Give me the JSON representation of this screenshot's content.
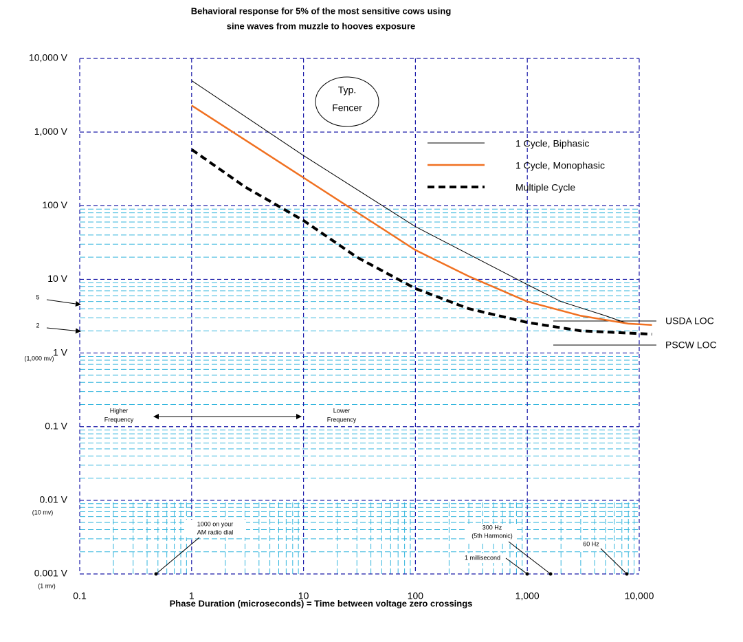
{
  "chart_data": {
    "type": "line",
    "title": [
      "Behavioral response for 5% of the most sensitive cows using",
      "sine waves from muzzle to hooves exposure"
    ],
    "x_label": "Phase Duration (microseconds) = Time between voltage zero crossings",
    "log_x": true,
    "log_y": true,
    "grid": true,
    "xlim": [
      0.1,
      10000
    ],
    "ylim": [
      0.001,
      10000
    ],
    "xticks": [
      0.1,
      1,
      10,
      100,
      {
        "value": 1000,
        "label": "1,000"
      },
      {
        "value": 10000,
        "label": "10,000"
      }
    ],
    "yticks": [
      {
        "value": 0.001,
        "label": "0.001 V"
      },
      {
        "value": 0.01,
        "label": "0.01 V"
      },
      {
        "value": 0.1,
        "label": "0.1 V"
      },
      {
        "value": 1,
        "label": "1 V"
      },
      {
        "value": 10,
        "label": "10 V"
      },
      {
        "value": 100,
        "label": "100 V"
      },
      {
        "value": 1000,
        "label": "1,000 V"
      },
      {
        "value": 10000,
        "label": "10,000 V"
      }
    ],
    "minor_grid_ylim": [
      0.001,
      100
    ],
    "minor_x_grid_ylim": [
      0.001,
      0.01
    ],
    "series": [
      {
        "name": "1 Cycle, Biphasic",
        "color": "#000000",
        "width": 1,
        "dashed": false,
        "x": [
          1,
          10,
          100,
          1000,
          2000,
          5000,
          8000
        ],
        "values": [
          5000,
          480,
          52,
          8.5,
          5,
          3.2,
          2.5
        ]
      },
      {
        "name": "1 Cycle, Monophasic",
        "color": "#f07020",
        "width": 2.5,
        "dashed": false,
        "x": [
          1,
          10,
          100,
          300,
          1000,
          3000,
          8000,
          13000
        ],
        "values": [
          2300,
          240,
          25,
          11,
          5,
          3.2,
          2.5,
          2.4
        ]
      },
      {
        "name": "Multiple Cycle",
        "color": "#000000",
        "width": 4,
        "dashed": true,
        "x": [
          1,
          3,
          10,
          30,
          100,
          300,
          1000,
          3000,
          13000
        ],
        "values": [
          580,
          180,
          63,
          20,
          7.5,
          4,
          2.6,
          2,
          1.8
        ]
      }
    ],
    "annotations": {
      "fencer": [
        "Typ.",
        "Fencer"
      ],
      "higher": [
        "Higher",
        "Frequency"
      ],
      "lower": [
        "Lower",
        "Frequency"
      ],
      "am": [
        "1000 on your",
        "AM radio dial"
      ],
      "hz300": [
        "300 Hz",
        "(5th Harmonic)"
      ],
      "ms": "1 millisecond",
      "hz60": "60 Hz",
      "usda": "USDA LOC",
      "pscw": "PSCW LOC",
      "five": "5",
      "two": "2",
      "mv1000": "(1,000 mv)",
      "mv10": "(10 mv)",
      "mv1": "(1 mv)"
    }
  }
}
